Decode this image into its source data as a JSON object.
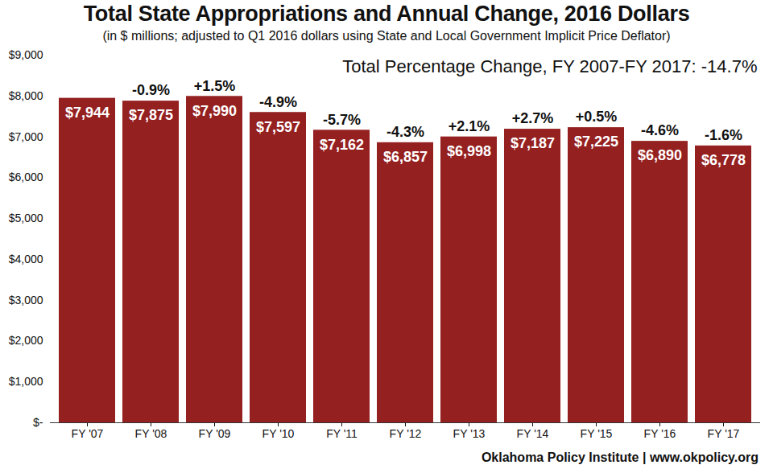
{
  "chart_data": {
    "type": "bar",
    "title": "Total State Appropriations and Annual Change, 2016 Dollars",
    "subtitle": "(in $ millions; adjusted to Q1 2016 dollars using State and Local Government Implicit Price Deflator)",
    "annotation": "Total Percentage Change, FY 2007-FY 2017: -14.7%",
    "source": "Oklahoma Policy Institute | www.okpolicy.org",
    "categories": [
      "FY '07",
      "FY '08",
      "FY '09",
      "FY '10",
      "FY '11",
      "FY '12",
      "FY '13",
      "FY '14",
      "FY '15",
      "FY '16",
      "FY '17"
    ],
    "values": [
      7944,
      7875,
      7990,
      7597,
      7162,
      6857,
      6998,
      7187,
      7225,
      6890,
      6778
    ],
    "value_labels": [
      "$7,944",
      "$7,875",
      "$7,990",
      "$7,597",
      "$7,162",
      "$6,857",
      "$6,998",
      "$7,187",
      "$7,225",
      "$6,890",
      "$6,778"
    ],
    "annual_change": [
      null,
      -0.9,
      1.5,
      -4.9,
      -5.7,
      -4.3,
      2.1,
      2.7,
      0.5,
      -4.6,
      -1.6
    ],
    "annual_change_labels": [
      null,
      "-0.9%",
      "+1.5%",
      "-4.9%",
      "-5.7%",
      "-4.3%",
      "+2.1%",
      "+2.7%",
      "+0.5%",
      "-4.6%",
      "-1.6%"
    ],
    "color": "#952020",
    "ylim": [
      0,
      9000
    ],
    "yticks": [
      {
        "value": 0,
        "label": "$-"
      },
      {
        "value": 1000,
        "label": "$1,000"
      },
      {
        "value": 2000,
        "label": "$2,000"
      },
      {
        "value": 3000,
        "label": "$3,000"
      },
      {
        "value": 4000,
        "label": "$4,000"
      },
      {
        "value": 5000,
        "label": "$5,000"
      },
      {
        "value": 6000,
        "label": "$6,000"
      },
      {
        "value": 7000,
        "label": "$7,000"
      },
      {
        "value": 8000,
        "label": "$8,000"
      },
      {
        "value": 9000,
        "label": "$9,000"
      }
    ],
    "grid": false,
    "data_labels": true
  }
}
